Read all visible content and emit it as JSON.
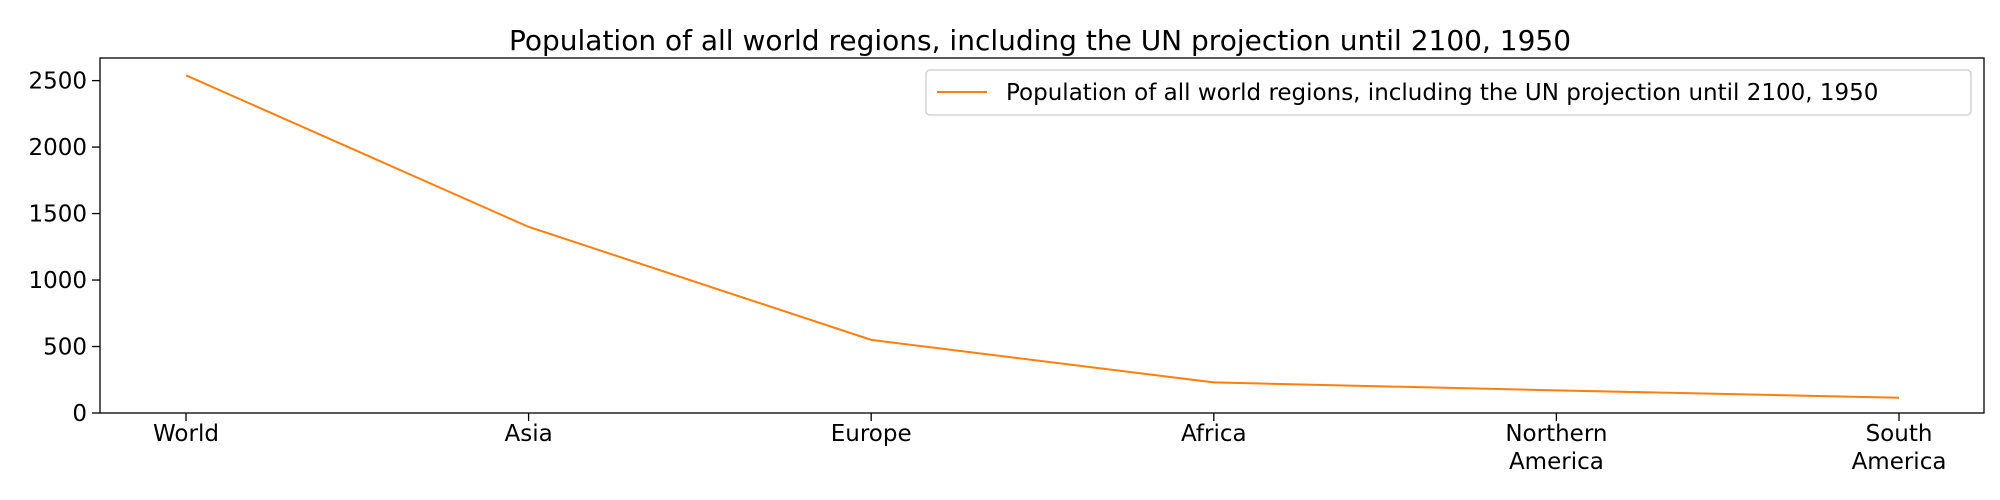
{
  "chart_data": {
    "type": "line",
    "title": "Population of all world regions, including the UN projection until 2100, 1950",
    "xlabel": "",
    "ylabel": "",
    "categories": [
      "World",
      "Asia",
      "Europe",
      "Africa",
      "Northern America",
      "South America"
    ],
    "category_display": [
      [
        "World"
      ],
      [
        "Asia"
      ],
      [
        "Europe"
      ],
      [
        "Africa"
      ],
      [
        "Northern",
        "America"
      ],
      [
        "South",
        "America"
      ]
    ],
    "series": [
      {
        "name": "Population of all world regions, including the UN projection until 2100, 1950",
        "color": "#ff7f0e",
        "values": [
          2540,
          1400,
          550,
          230,
          170,
          115
        ]
      }
    ],
    "ylim": [
      0,
      2670
    ],
    "yticks": [
      0,
      500,
      1000,
      1500,
      2000,
      2500
    ],
    "grid": false,
    "legend_position": "top-right"
  }
}
